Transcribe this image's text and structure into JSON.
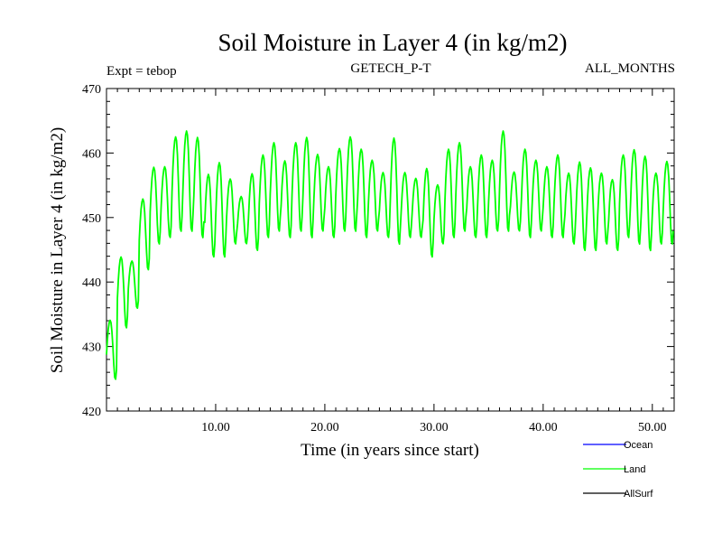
{
  "chart_data": {
    "type": "line",
    "title": "Soil Moisture in Layer 4 (in kg/m2)",
    "subtitle_left": "Expt = tebop",
    "subtitle_center": "GETECH_P-T",
    "subtitle_right": "ALL_MONTHS",
    "xlabel": "Time (in years since start)",
    "ylabel": "Soil Moisture in Layer 4 (in kg/m2)",
    "xlim": [
      0,
      52
    ],
    "ylim": [
      420,
      470
    ],
    "xticks": [
      10,
      20,
      30,
      40,
      50
    ],
    "xtick_labels": [
      "10.00",
      "20.00",
      "30.00",
      "40.00",
      "50.00"
    ],
    "yticks": [
      420,
      430,
      440,
      450,
      460,
      470
    ],
    "ytick_labels": [
      "420",
      "430",
      "440",
      "450",
      "460",
      "470"
    ],
    "legend_position": "bottom-right",
    "series": [
      {
        "name": "Ocean",
        "color": "#0000ff",
        "values": []
      },
      {
        "name": "Land",
        "color": "#00ff00",
        "annual_peaks": [
          435,
          445,
          444,
          454,
          459,
          459,
          464,
          465,
          464,
          458,
          460,
          457,
          454,
          458,
          461,
          463,
          460,
          463,
          464,
          461,
          459,
          462,
          464,
          462,
          460,
          458,
          464,
          458,
          457,
          459,
          456,
          462,
          463,
          459,
          461,
          460,
          465,
          458,
          462,
          460,
          459,
          461,
          458,
          460,
          459,
          458,
          457,
          461,
          462,
          461,
          458,
          460
        ],
        "annual_troughs": [
          425,
          433,
          436,
          442,
          446,
          447,
          448,
          448,
          447,
          444,
          444,
          446,
          446,
          445,
          447,
          448,
          447,
          448,
          447,
          448,
          447,
          448,
          448,
          447,
          448,
          447,
          446,
          447,
          447,
          444,
          446,
          447,
          448,
          447,
          447,
          448,
          448,
          448,
          447,
          448,
          447,
          447,
          446,
          445,
          445,
          446,
          445,
          447,
          446,
          445,
          446,
          446
        ]
      },
      {
        "name": "AllSurf",
        "color": "#000000",
        "values": []
      }
    ]
  }
}
